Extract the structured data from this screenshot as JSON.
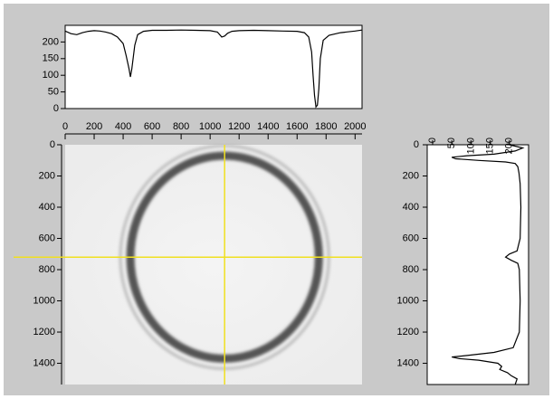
{
  "chart_data": [
    {
      "type": "line",
      "color": "#000000",
      "xlim": [
        0,
        2048
      ],
      "ylim": [
        0,
        250
      ],
      "yticks": [
        0,
        50,
        100,
        150,
        200
      ],
      "x": [
        0,
        40,
        80,
        120,
        160,
        200,
        240,
        280,
        320,
        360,
        400,
        420,
        440,
        450,
        460,
        480,
        500,
        540,
        600,
        700,
        800,
        900,
        1000,
        1050,
        1080,
        1100,
        1120,
        1150,
        1200,
        1300,
        1400,
        1500,
        1600,
        1650,
        1680,
        1700,
        1710,
        1720,
        1730,
        1740,
        1750,
        1760,
        1780,
        1820,
        1900,
        2000,
        2048
      ],
      "values": [
        233,
        225,
        222,
        228,
        232,
        234,
        233,
        230,
        225,
        215,
        195,
        160,
        120,
        95,
        120,
        190,
        222,
        232,
        235,
        235,
        236,
        235,
        234,
        230,
        215,
        218,
        226,
        232,
        234,
        235,
        234,
        233,
        232,
        228,
        215,
        170,
        100,
        40,
        5,
        10,
        60,
        150,
        205,
        220,
        228,
        233,
        236
      ]
    },
    {
      "type": "image",
      "ring_color": "#555555",
      "crosshair_color": "#f0e020",
      "xlim": [
        0,
        2048
      ],
      "ylim": [
        1536,
        0
      ],
      "xticks": [
        0,
        200,
        400,
        600,
        800,
        1000,
        1200,
        1400,
        1600,
        1800,
        2000
      ],
      "yticks": [
        0,
        200,
        400,
        600,
        800,
        1000,
        1200,
        1400
      ],
      "crosshair": {
        "x": 1100,
        "y": 720
      },
      "ring": {
        "cx": 1100,
        "cy": 720,
        "r": 650
      }
    },
    {
      "type": "vertical-line",
      "color": "#000000",
      "xlim": [
        0,
        250
      ],
      "ylim": [
        1536,
        0
      ],
      "xticks": [
        0,
        50,
        100,
        150,
        200
      ],
      "yticks": [
        0,
        200,
        400,
        600,
        800,
        1000,
        1200,
        1400
      ],
      "positions": [
        0,
        20,
        40,
        60,
        70,
        80,
        90,
        100,
        110,
        120,
        140,
        180,
        250,
        400,
        600,
        680,
        700,
        720,
        740,
        760,
        800,
        1000,
        1200,
        1300,
        1330,
        1350,
        1360,
        1370,
        1380,
        1400,
        1420,
        1440,
        1460,
        1480,
        1500,
        1536
      ],
      "values": [
        200,
        235,
        215,
        160,
        90,
        50,
        60,
        120,
        190,
        215,
        222,
        225,
        228,
        230,
        228,
        220,
        200,
        190,
        205,
        222,
        226,
        228,
        226,
        210,
        160,
        90,
        50,
        70,
        120,
        170,
        180,
        175,
        195,
        205,
        220,
        215
      ]
    }
  ]
}
